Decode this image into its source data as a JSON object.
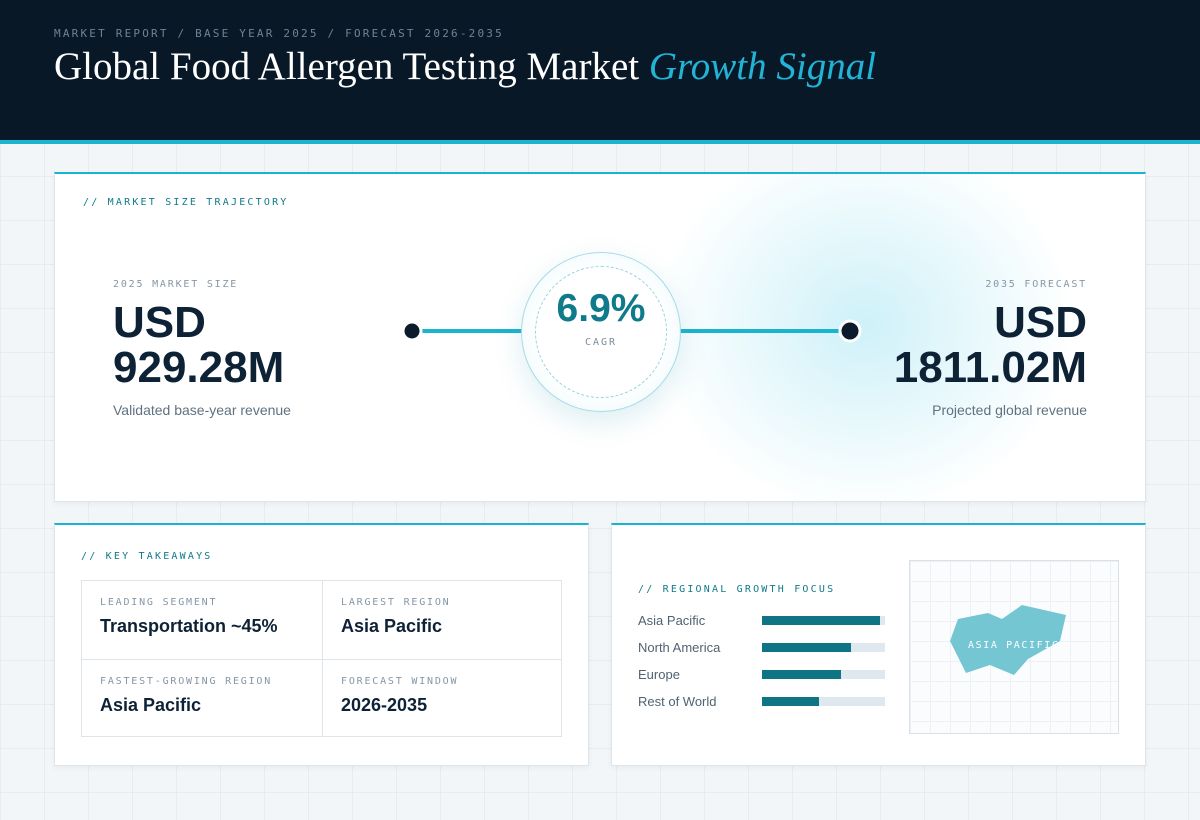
{
  "header": {
    "eyebrow": "MARKET REPORT / BASE YEAR 2025 / FORECAST 2026-2035",
    "title_main": "Global Food Allergen Testing Market",
    "title_accent": "Growth Signal"
  },
  "colors": {
    "header_bg": "#091827",
    "accent": "#1ab4cf",
    "teal_dark": "#0f7a8b",
    "text_dark": "#0e2236"
  },
  "trajectory": {
    "section_label": "// MARKET SIZE TRAJECTORY",
    "start": {
      "label": "2025 MARKET SIZE",
      "value_line1": "USD",
      "value_line2": "929.28M",
      "caption": "Validated base-year revenue"
    },
    "end": {
      "label": "2035 FORECAST",
      "value_line1": "USD",
      "value_line2": "1811.02M",
      "caption": "Projected global revenue"
    },
    "cagr": {
      "value": "6.9%",
      "label": "CAGR"
    }
  },
  "takeaways": {
    "section_label": "// KEY TAKEAWAYS",
    "items": [
      {
        "label": "LEADING SEGMENT",
        "value": "Transportation ~45%"
      },
      {
        "label": "LARGEST REGION",
        "value": "Asia Pacific"
      },
      {
        "label": "FASTEST-GROWING REGION",
        "value": "Asia Pacific"
      },
      {
        "label": "FORECAST WINDOW",
        "value": "2026-2035"
      }
    ]
  },
  "regional": {
    "section_label": "// REGIONAL GROWTH FOCUS",
    "map_label": "ASIA PACIFIC",
    "map_icon": "asia-pacific-map-icon"
  },
  "chart_data": {
    "type": "bar",
    "orientation": "horizontal",
    "categories": [
      "Asia Pacific",
      "North America",
      "Europe",
      "Rest of World"
    ],
    "values": [
      0.96,
      0.72,
      0.64,
      0.46
    ],
    "value_unit": "fraction of bar track (relative growth focus, unlabeled)",
    "xlim": [
      0,
      1
    ],
    "grid": false
  }
}
